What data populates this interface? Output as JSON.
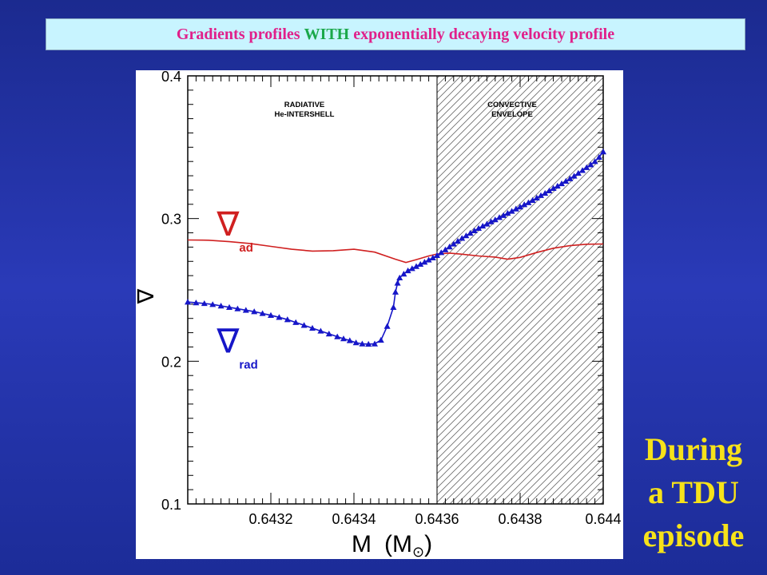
{
  "header": {
    "title_pre": "Gradients profiles ",
    "title_highlight": "WITH",
    "title_post": " exponentially decaying velocity profile",
    "title_color": "#e0208a",
    "highlight_color": "#1aa84a"
  },
  "caption": {
    "lines": [
      "During",
      "a TDU",
      "episode"
    ],
    "color": "#f6e21a"
  },
  "chart_data": {
    "type": "line",
    "title": "Gradients profiles WITH exponentially decaying velocity profile",
    "xlabel": "M (M⊙)",
    "xlabel_main": "M",
    "xlabel_unit_open": "(M",
    "xlabel_unit_sym": "⊙",
    "xlabel_unit_close": ")",
    "ylabel": "∇",
    "xlim": [
      0.643,
      0.644
    ],
    "ylim": [
      0.1,
      0.4
    ],
    "x_ticks": [
      0.6432,
      0.6434,
      0.6436,
      0.6438,
      0.644
    ],
    "x_tick_labels": [
      "0.6432",
      "0.6434",
      "0.6436",
      "0.6438",
      "0.644"
    ],
    "y_ticks": [
      0.1,
      0.2,
      0.3,
      0.4
    ],
    "y_tick_labels": [
      "0.1",
      "0.2",
      "0.3",
      "0.4"
    ],
    "grid": false,
    "regions": [
      {
        "label_lines": [
          "RADIATIVE",
          "He-INTERSHELL"
        ],
        "x_from": 0.643,
        "x_to": 0.6436,
        "hatched": false
      },
      {
        "label_lines": [
          "CONVECTIVE",
          "ENVELOPE"
        ],
        "x_from": 0.6436,
        "x_to": 0.644,
        "hatched": true
      }
    ],
    "series": [
      {
        "name": "∇ad",
        "symbol": "∇",
        "subscript": "ad",
        "color": "#d02020",
        "marker": "none",
        "label_pos": [
          0.64307,
          0.288
        ],
        "x": [
          0.643,
          0.64305,
          0.6431,
          0.64315,
          0.6432,
          0.64325,
          0.6433,
          0.64335,
          0.6434,
          0.64345,
          0.6435,
          0.643525,
          0.64355,
          0.64358,
          0.6436,
          0.64363,
          0.64366,
          0.6437,
          0.64374,
          0.64377,
          0.6438,
          0.64384,
          0.64388,
          0.64392,
          0.64396,
          0.644
        ],
        "y": [
          0.285,
          0.2848,
          0.2838,
          0.2825,
          0.2805,
          0.2785,
          0.2772,
          0.2775,
          0.2785,
          0.2765,
          0.2715,
          0.2692,
          0.2712,
          0.2738,
          0.2752,
          0.2758,
          0.275,
          0.2738,
          0.273,
          0.2715,
          0.2728,
          0.2762,
          0.2792,
          0.281,
          0.282,
          0.2822
        ]
      },
      {
        "name": "∇rad",
        "symbol": "∇",
        "subscript": "rad",
        "color": "#1616c8",
        "marker": "triangle",
        "label_pos": [
          0.64307,
          0.206
        ],
        "x": [
          0.643,
          0.64302,
          0.64304,
          0.64306,
          0.64308,
          0.6431,
          0.64312,
          0.64314,
          0.64316,
          0.64318,
          0.6432,
          0.64322,
          0.64324,
          0.64326,
          0.64328,
          0.6433,
          0.64332,
          0.64334,
          0.64336,
          0.643375,
          0.64339,
          0.643405,
          0.64342,
          0.643435,
          0.64345,
          0.643465,
          0.64348,
          0.643495,
          0.6435,
          0.643505,
          0.64351,
          0.64352,
          0.64353,
          0.64354,
          0.64355,
          0.64356,
          0.64357,
          0.64358,
          0.64359,
          0.6436,
          0.64361,
          0.64362,
          0.64363,
          0.64364,
          0.64365,
          0.64366,
          0.64367,
          0.64368,
          0.64369,
          0.6437,
          0.64371,
          0.64372,
          0.64373,
          0.64374,
          0.64375,
          0.64376,
          0.64377,
          0.64378,
          0.64379,
          0.6438,
          0.64381,
          0.64382,
          0.64383,
          0.64384,
          0.64385,
          0.64386,
          0.64387,
          0.64388,
          0.64389,
          0.6439,
          0.64391,
          0.64392,
          0.64393,
          0.64394,
          0.64395,
          0.64396,
          0.64397,
          0.64398,
          0.64399,
          0.644
        ],
        "y": [
          0.2415,
          0.241,
          0.2405,
          0.2398,
          0.2388,
          0.2378,
          0.2368,
          0.2358,
          0.2348,
          0.2335,
          0.2322,
          0.2308,
          0.2292,
          0.2272,
          0.2252,
          0.2232,
          0.2212,
          0.2192,
          0.2172,
          0.2158,
          0.2145,
          0.213,
          0.2122,
          0.212,
          0.2122,
          0.2148,
          0.2245,
          0.2378,
          0.2485,
          0.2548,
          0.2585,
          0.2612,
          0.2635,
          0.265,
          0.2665,
          0.268,
          0.2695,
          0.271,
          0.2725,
          0.2742,
          0.2762,
          0.2782,
          0.2802,
          0.2822,
          0.2842,
          0.2862,
          0.288,
          0.2898,
          0.2915,
          0.2932,
          0.2948,
          0.2962,
          0.2978,
          0.2992,
          0.3008,
          0.3022,
          0.3038,
          0.3052,
          0.3068,
          0.3082,
          0.3098,
          0.3112,
          0.3128,
          0.3145,
          0.3162,
          0.3178,
          0.3195,
          0.3212,
          0.3228,
          0.3245,
          0.3262,
          0.328,
          0.3298,
          0.3318,
          0.3338,
          0.3358,
          0.3378,
          0.34,
          0.343,
          0.3468
        ]
      }
    ]
  }
}
